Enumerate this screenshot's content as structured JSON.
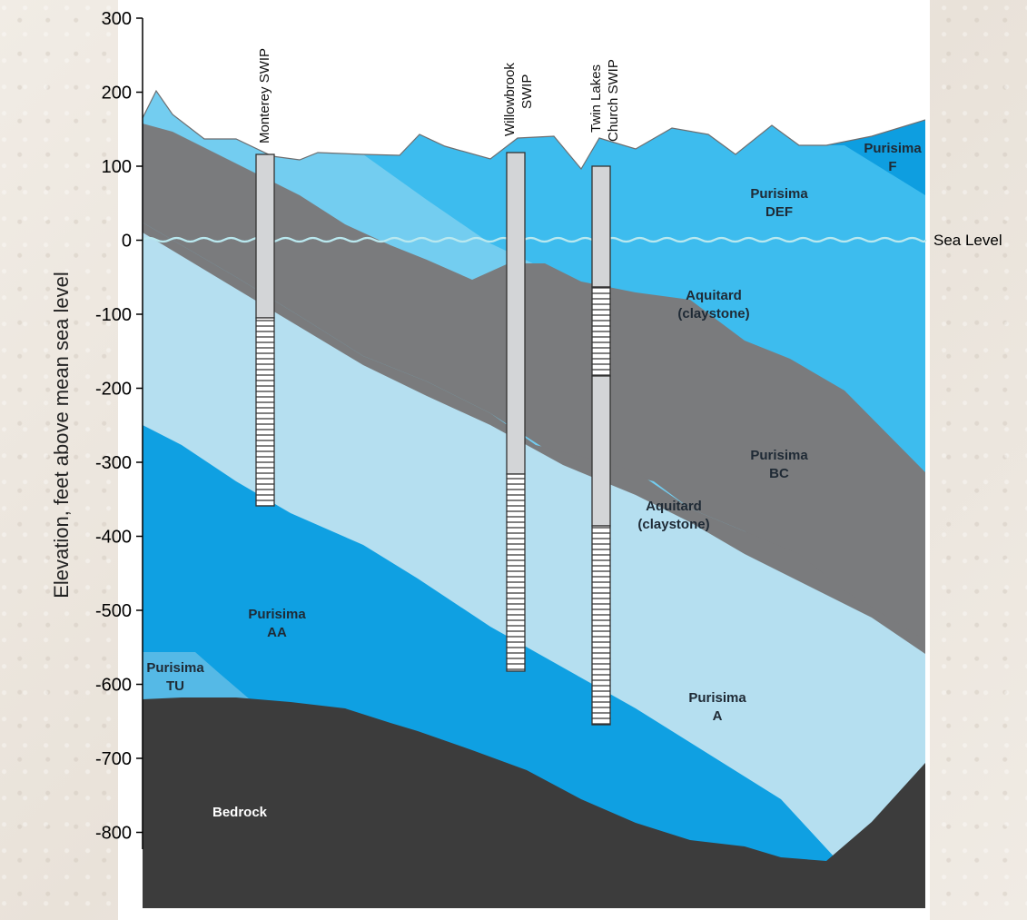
{
  "axis": {
    "title": "Elevation, feet above mean sea level",
    "ticks": [
      "300",
      "200",
      "100",
      "0",
      "-100",
      "-200",
      "-300",
      "-400",
      "-500",
      "-600",
      "-700",
      "-800"
    ]
  },
  "sea_level_label": "Sea Level",
  "wells": {
    "monterey": "Monterey SWIP",
    "willowbrook": [
      "Willowbrook",
      "SWIP"
    ],
    "twin_lakes": [
      "Twin Lakes",
      "Church SWIP"
    ]
  },
  "units": {
    "purisima_f": [
      "Purisima",
      "F"
    ],
    "purisima_def": [
      "Purisima",
      "DEF"
    ],
    "aquitard_upper": [
      "Aquitard",
      "(claystone)"
    ],
    "purisima_bc": [
      "Purisima",
      "BC"
    ],
    "aquitard_lower": [
      "Aquitard",
      "(claystone)"
    ],
    "purisima_aa": [
      "Purisima",
      "AA"
    ],
    "purisima_tu": [
      "Purisima",
      "TU"
    ],
    "purisima_a": [
      "Purisima",
      "A"
    ],
    "bedrock": "Bedrock"
  },
  "colors": {
    "purisima_f": "#0e9ee0",
    "purisima_def": "#3dbcee",
    "aquitard": "#7a7b7d",
    "purisima_bc": "#73cdf0",
    "purisima_a": "#b5dff0",
    "purisima_aa": "#0fa0e2",
    "purisima_tu": "#55b9e6",
    "bedrock": "#3c3c3c",
    "sea_level": "#b9e8ef"
  }
}
